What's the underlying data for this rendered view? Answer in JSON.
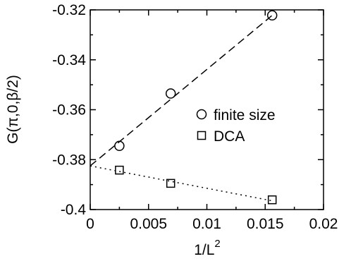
{
  "chart_data": {
    "type": "scatter",
    "xlabel_base": "1/L",
    "xlabel_sup": "2",
    "ylabel": "G(π,0,β/2)",
    "xlim": [
      0,
      0.02
    ],
    "ylim": [
      -0.4,
      -0.32
    ],
    "x_ticks": [
      0,
      0.005,
      0.01,
      0.015,
      0.02
    ],
    "x_tick_labels": [
      "0",
      "0.005",
      "0.01",
      "0.015",
      "0.02"
    ],
    "y_ticks": [
      -0.4,
      -0.38,
      -0.36,
      -0.34,
      -0.32
    ],
    "y_tick_labels": [
      "-0.4",
      "-0.38",
      "-0.36",
      "-0.34",
      "-0.32"
    ],
    "legend_position": "right",
    "series": [
      {
        "name": "finite size",
        "marker": "circle",
        "x": [
          0.0025,
          0.0069,
          0.0156
        ],
        "y": [
          -0.3745,
          -0.3535,
          -0.3222
        ],
        "fit": {
          "style": "dashed",
          "x": [
            0,
            0.0156
          ],
          "y": [
            -0.3825,
            -0.3222
          ]
        }
      },
      {
        "name": "DCA",
        "marker": "square",
        "x": [
          0.0025,
          0.0069,
          0.0156
        ],
        "y": [
          -0.3842,
          -0.3895,
          -0.3961
        ],
        "fit": {
          "style": "dotted",
          "x": [
            0,
            0.0156
          ],
          "y": [
            -0.3825,
            -0.3965
          ]
        }
      }
    ]
  }
}
